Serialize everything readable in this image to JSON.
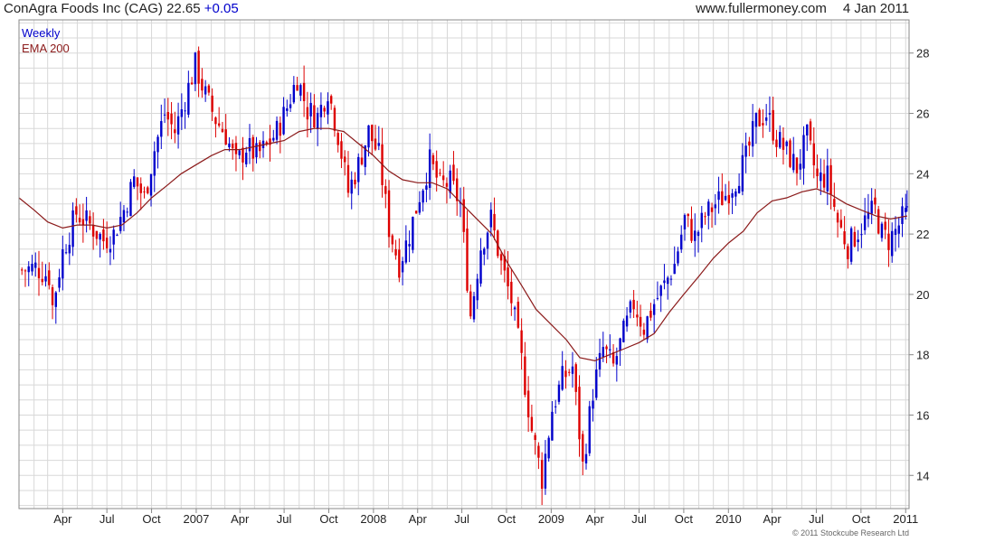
{
  "header": {
    "title": "ConAgra Foods Inc (CAG) 22.65",
    "change": "+0.05",
    "site": "www.fullermoney.com",
    "date": "4 Jan 2011"
  },
  "legend": {
    "series1": "Weekly",
    "series2": "EMA 200"
  },
  "copyright": "© 2011 Stockcube Research Ltd",
  "colors": {
    "up": "#0000cc",
    "down": "#dd0000",
    "ema": "#8b1a1a",
    "grid": "#d8d8d8",
    "frame": "#888888"
  },
  "chart_data": {
    "type": "line",
    "title": "ConAgra Foods Inc (CAG) 22.65 +0.05",
    "interval": "Weekly",
    "ylim": [
      12.9,
      29.1
    ],
    "xlim": [
      "2006-01-01",
      "2011-01-08"
    ],
    "y_ticks": [
      14,
      16,
      18,
      20,
      22,
      24,
      26,
      28
    ],
    "x_ticks": [
      {
        "label": "Apr",
        "date": "2006-04-01"
      },
      {
        "label": "Jul",
        "date": "2006-07-01"
      },
      {
        "label": "Oct",
        "date": "2006-10-01"
      },
      {
        "label": "2007",
        "date": "2007-01-01"
      },
      {
        "label": "Apr",
        "date": "2007-04-01"
      },
      {
        "label": "Jul",
        "date": "2007-07-01"
      },
      {
        "label": "Oct",
        "date": "2007-10-01"
      },
      {
        "label": "2008",
        "date": "2008-01-01"
      },
      {
        "label": "Apr",
        "date": "2008-04-01"
      },
      {
        "label": "Jul",
        "date": "2008-07-01"
      },
      {
        "label": "Oct",
        "date": "2008-10-01"
      },
      {
        "label": "2009",
        "date": "2009-01-01"
      },
      {
        "label": "Apr",
        "date": "2009-04-01"
      },
      {
        "label": "Jul",
        "date": "2009-07-01"
      },
      {
        "label": "Oct",
        "date": "2009-10-01"
      },
      {
        "label": "2010",
        "date": "2010-01-01"
      },
      {
        "label": "Apr",
        "date": "2010-04-01"
      },
      {
        "label": "Jul",
        "date": "2010-07-01"
      },
      {
        "label": "Oct",
        "date": "2010-10-01"
      },
      {
        "label": "2011",
        "date": "2011-01-01"
      }
    ],
    "series": [
      {
        "name": "Weekly",
        "style": "candlestick",
        "points": [
          [
            "2006-01-07",
            20.8
          ],
          [
            "2006-02-04",
            20.9
          ],
          [
            "2006-03-04",
            20.6
          ],
          [
            "2006-03-11",
            19.6
          ],
          [
            "2006-04-01",
            21.4
          ],
          [
            "2006-04-29",
            22.7
          ],
          [
            "2006-05-27",
            22.3
          ],
          [
            "2006-06-24",
            21.8
          ],
          [
            "2006-07-15",
            22.0
          ],
          [
            "2006-08-05",
            22.8
          ],
          [
            "2006-08-26",
            23.8
          ],
          [
            "2006-09-16",
            23.2
          ],
          [
            "2006-10-07",
            24.8
          ],
          [
            "2006-10-28",
            26.0
          ],
          [
            "2006-11-18",
            25.4
          ],
          [
            "2006-12-09",
            26.5
          ],
          [
            "2006-12-30",
            27.6
          ],
          [
            "2007-01-20",
            26.6
          ],
          [
            "2007-02-10",
            25.8
          ],
          [
            "2007-03-03",
            25.3
          ],
          [
            "2007-03-24",
            24.3
          ],
          [
            "2007-04-14",
            24.9
          ],
          [
            "2007-05-05",
            24.6
          ],
          [
            "2007-05-26",
            24.9
          ],
          [
            "2007-06-16",
            25.4
          ],
          [
            "2007-07-07",
            26.2
          ],
          [
            "2007-07-28",
            27.2
          ],
          [
            "2007-08-18",
            26.1
          ],
          [
            "2007-09-08",
            25.9
          ],
          [
            "2007-09-29",
            26.8
          ],
          [
            "2007-10-20",
            25.3
          ],
          [
            "2007-11-10",
            23.4
          ],
          [
            "2007-12-01",
            24.3
          ],
          [
            "2007-12-22",
            25.4
          ],
          [
            "2008-01-12",
            24.6
          ],
          [
            "2008-02-02",
            22.2
          ],
          [
            "2008-02-23",
            21.0
          ],
          [
            "2008-03-15",
            22.0
          ],
          [
            "2008-04-05",
            23.3
          ],
          [
            "2008-04-26",
            24.4
          ],
          [
            "2008-05-17",
            23.6
          ],
          [
            "2008-06-07",
            23.7
          ],
          [
            "2008-06-28",
            23.0
          ],
          [
            "2008-07-19",
            19.3
          ],
          [
            "2008-08-09",
            21.6
          ],
          [
            "2008-08-30",
            22.5
          ],
          [
            "2008-09-20",
            21.0
          ],
          [
            "2008-10-11",
            19.8
          ],
          [
            "2008-11-01",
            17.8
          ],
          [
            "2008-11-22",
            15.5
          ],
          [
            "2008-12-13",
            13.9
          ],
          [
            "2009-01-03",
            16.2
          ],
          [
            "2009-01-24",
            17.2
          ],
          [
            "2009-02-14",
            17.6
          ],
          [
            "2009-03-07",
            14.3
          ],
          [
            "2009-03-28",
            16.8
          ],
          [
            "2009-04-18",
            18.2
          ],
          [
            "2009-05-09",
            17.6
          ],
          [
            "2009-05-30",
            18.7
          ],
          [
            "2009-06-20",
            19.7
          ],
          [
            "2009-07-11",
            18.9
          ],
          [
            "2009-08-01",
            19.7
          ],
          [
            "2009-08-22",
            20.3
          ],
          [
            "2009-09-12",
            21.0
          ],
          [
            "2009-10-03",
            22.5
          ],
          [
            "2009-10-24",
            21.9
          ],
          [
            "2009-11-14",
            22.6
          ],
          [
            "2009-12-05",
            23.0
          ],
          [
            "2009-12-26",
            23.3
          ],
          [
            "2010-01-16",
            23.8
          ],
          [
            "2010-02-06",
            24.5
          ],
          [
            "2010-02-27",
            25.7
          ],
          [
            "2010-03-20",
            26.0
          ],
          [
            "2010-04-10",
            25.2
          ],
          [
            "2010-05-01",
            24.7
          ],
          [
            "2010-05-22",
            24.2
          ],
          [
            "2010-06-12",
            25.2
          ],
          [
            "2010-07-03",
            23.8
          ],
          [
            "2010-07-24",
            23.9
          ],
          [
            "2010-08-14",
            22.4
          ],
          [
            "2010-09-04",
            21.6
          ],
          [
            "2010-09-25",
            22.1
          ],
          [
            "2010-10-16",
            22.6
          ],
          [
            "2010-10-30",
            22.8
          ],
          [
            "2010-11-13",
            22.0
          ],
          [
            "2010-11-27",
            21.8
          ],
          [
            "2010-12-11",
            22.1
          ],
          [
            "2010-12-25",
            22.5
          ],
          [
            "2011-01-04",
            22.65
          ]
        ]
      },
      {
        "name": "EMA 200",
        "style": "line",
        "points": [
          [
            "2006-01-01",
            23.2
          ],
          [
            "2006-02-01",
            22.8
          ],
          [
            "2006-03-01",
            22.4
          ],
          [
            "2006-04-01",
            22.2
          ],
          [
            "2006-05-01",
            22.3
          ],
          [
            "2006-06-01",
            22.3
          ],
          [
            "2006-07-01",
            22.2
          ],
          [
            "2006-08-01",
            22.3
          ],
          [
            "2006-09-01",
            22.7
          ],
          [
            "2006-10-01",
            23.2
          ],
          [
            "2006-11-01",
            23.6
          ],
          [
            "2006-12-01",
            24.0
          ],
          [
            "2007-01-01",
            24.3
          ],
          [
            "2007-02-01",
            24.6
          ],
          [
            "2007-03-01",
            24.8
          ],
          [
            "2007-04-01",
            24.8
          ],
          [
            "2007-05-01",
            24.9
          ],
          [
            "2007-06-01",
            25.0
          ],
          [
            "2007-07-01",
            25.1
          ],
          [
            "2007-08-01",
            25.4
          ],
          [
            "2007-09-01",
            25.5
          ],
          [
            "2007-10-01",
            25.5
          ],
          [
            "2007-11-01",
            25.4
          ],
          [
            "2007-12-01",
            25.0
          ],
          [
            "2008-01-01",
            24.6
          ],
          [
            "2008-02-01",
            24.1
          ],
          [
            "2008-03-01",
            23.8
          ],
          [
            "2008-04-01",
            23.7
          ],
          [
            "2008-05-01",
            23.7
          ],
          [
            "2008-06-01",
            23.5
          ],
          [
            "2008-07-01",
            23.0
          ],
          [
            "2008-08-01",
            22.5
          ],
          [
            "2008-09-01",
            22.0
          ],
          [
            "2008-10-01",
            21.1
          ],
          [
            "2008-11-01",
            20.3
          ],
          [
            "2008-12-01",
            19.5
          ],
          [
            "2009-01-01",
            19.0
          ],
          [
            "2009-02-01",
            18.5
          ],
          [
            "2009-03-01",
            17.9
          ],
          [
            "2009-04-01",
            17.8
          ],
          [
            "2009-05-01",
            18.0
          ],
          [
            "2009-06-01",
            18.2
          ],
          [
            "2009-07-01",
            18.4
          ],
          [
            "2009-08-01",
            18.7
          ],
          [
            "2009-09-01",
            19.4
          ],
          [
            "2009-10-01",
            20.0
          ],
          [
            "2009-11-01",
            20.6
          ],
          [
            "2009-12-01",
            21.2
          ],
          [
            "2010-01-01",
            21.7
          ],
          [
            "2010-02-01",
            22.1
          ],
          [
            "2010-03-01",
            22.7
          ],
          [
            "2010-04-01",
            23.1
          ],
          [
            "2010-05-01",
            23.2
          ],
          [
            "2010-06-01",
            23.4
          ],
          [
            "2010-07-01",
            23.5
          ],
          [
            "2010-08-01",
            23.3
          ],
          [
            "2010-09-01",
            23.0
          ],
          [
            "2010-10-01",
            22.8
          ],
          [
            "2010-11-01",
            22.6
          ],
          [
            "2010-12-01",
            22.5
          ],
          [
            "2011-01-04",
            22.6
          ]
        ]
      }
    ],
    "grid": true,
    "legend": "top-left"
  }
}
